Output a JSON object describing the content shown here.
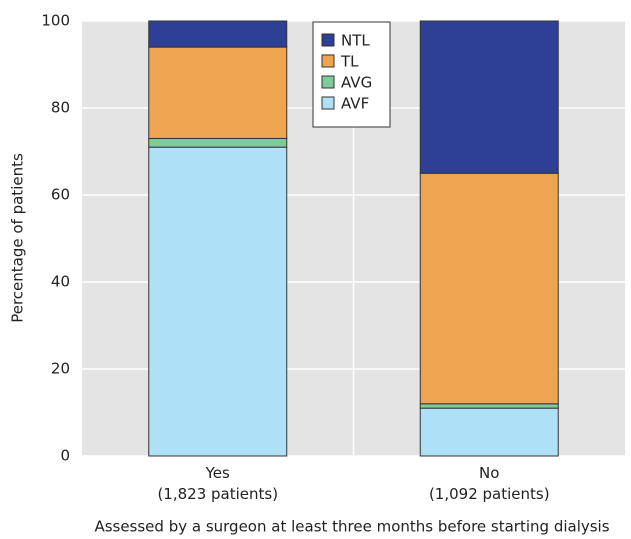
{
  "chart_data": {
    "type": "stacked_bar",
    "categories": [
      "Yes\n(1,823 patients)",
      "No\n(1,092 patients)"
    ],
    "series": [
      {
        "name": "AVF",
        "color": "#aee0f8",
        "values": [
          71,
          11
        ]
      },
      {
        "name": "AVG",
        "color": "#7ecb9a",
        "values": [
          2,
          1
        ]
      },
      {
        "name": "TL",
        "color": "#eea450",
        "values": [
          21,
          53
        ]
      },
      {
        "name": "NTL",
        "color": "#2e3f96",
        "values": [
          6,
          35
        ]
      }
    ],
    "ylim": [
      0,
      100
    ],
    "yticks": [
      0,
      20,
      40,
      60,
      80,
      100
    ],
    "grid": true,
    "ylabel": "Percentage of patients",
    "xlabel": "Assessed by a surgeon at least three months before starting dialysis",
    "legend": "top"
  }
}
